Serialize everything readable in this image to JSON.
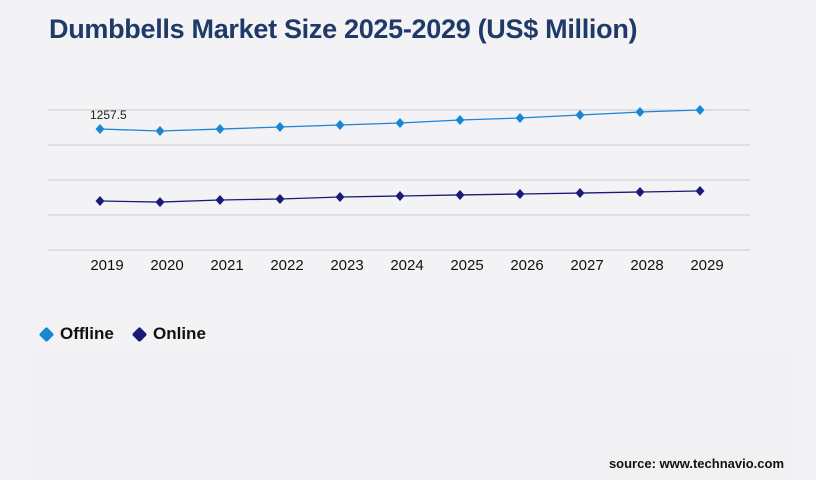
{
  "chart_data": {
    "type": "line",
    "title": "Dumbbells Market Size 2025-2029 (US$ Million)",
    "x": [
      "2019",
      "2020",
      "2021",
      "2022",
      "2023",
      "2024",
      "2025",
      "2026",
      "2027",
      "2028",
      "2029"
    ],
    "series": [
      {
        "name": "Offline",
        "color": "#1a87d6",
        "values": [
          1257.5,
          1237,
          1257,
          1278,
          1299,
          1320,
          1351,
          1372,
          1403,
          1434,
          1455
        ]
      },
      {
        "name": "Online",
        "color": "#1b1a78",
        "values": [
          509,
          498,
          520,
          530,
          551,
          561,
          572,
          582,
          592,
          603,
          613
        ]
      }
    ],
    "data_labels": [
      {
        "series": "Offline",
        "x": "2019",
        "text": "1257.5"
      }
    ],
    "ylim": [
      0,
      1455
    ],
    "grid": true,
    "legend": "bottom-left"
  },
  "source": "source: www.technavio.com"
}
